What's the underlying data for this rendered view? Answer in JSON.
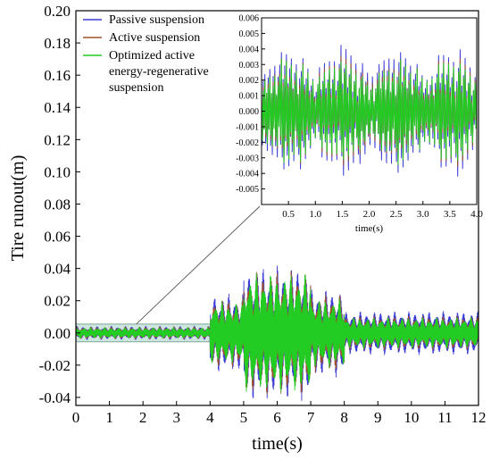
{
  "chart_data": [
    {
      "type": "line",
      "xlabel": "time(s)",
      "ylabel": "Tire runout(m)",
      "xlim": [
        0,
        12
      ],
      "ylim": [
        -0.045,
        0.2
      ],
      "xticks": [
        "0",
        "1",
        "2",
        "3",
        "4",
        "5",
        "6",
        "7",
        "8",
        "9",
        "10",
        "11",
        "12"
      ],
      "yticks": [
        "0.20",
        "0.18",
        "0.16",
        "0.14",
        "0.12",
        "0.10",
        "0.08",
        "0.06",
        "0.04",
        "0.02",
        "0.00",
        "-0.02",
        "-0.04"
      ],
      "grid": false,
      "legend": "top-left",
      "highlight_region": {
        "x": [
          0,
          4
        ],
        "y": [
          -0.0055,
          0.0055
        ]
      },
      "series": [
        {
          "name": "Passive suspension",
          "color": "#3b3bd6",
          "segments": [
            {
              "x_range": [
                0,
                4
              ],
              "amplitude": 0.0045
            },
            {
              "x_range": [
                4,
                5
              ],
              "amplitude": 0.025
            },
            {
              "x_range": [
                5,
                7
              ],
              "amplitude": 0.043
            },
            {
              "x_range": [
                7,
                8
              ],
              "amplitude": 0.028
            },
            {
              "x_range": [
                8,
                12
              ],
              "amplitude": 0.014
            }
          ]
        },
        {
          "name": "Active suspension",
          "color": "#a0522d",
          "segments": [
            {
              "x_range": [
                0,
                4
              ],
              "amplitude": 0.004
            },
            {
              "x_range": [
                4,
                5
              ],
              "amplitude": 0.022
            },
            {
              "x_range": [
                5,
                7
              ],
              "amplitude": 0.04
            },
            {
              "x_range": [
                7,
                8
              ],
              "amplitude": 0.025
            },
            {
              "x_range": [
                8,
                12
              ],
              "amplitude": 0.011
            }
          ]
        },
        {
          "name": "Optimized active energy-regenerative suspension",
          "color": "#22cc22",
          "segments": [
            {
              "x_range": [
                0,
                4
              ],
              "amplitude": 0.0035
            },
            {
              "x_range": [
                4,
                5
              ],
              "amplitude": 0.02
            },
            {
              "x_range": [
                5,
                7
              ],
              "amplitude": 0.038
            },
            {
              "x_range": [
                7,
                8
              ],
              "amplitude": 0.022
            },
            {
              "x_range": [
                8,
                12
              ],
              "amplitude": 0.01
            }
          ]
        }
      ]
    },
    {
      "type": "line",
      "role": "inset",
      "xlabel": "time(s)",
      "ylabel": "",
      "xlim": [
        0,
        4
      ],
      "ylim": [
        -0.006,
        0.006
      ],
      "xticks": [
        "0.5",
        "1.0",
        "1.5",
        "2.0",
        "2.5",
        "3.0",
        "3.5",
        "4.0"
      ],
      "yticks": [
        "0.006",
        "0.005",
        "0.004",
        "0.003",
        "0.002",
        "0.001",
        "0.000",
        "-0.001",
        "-0.002",
        "-0.003",
        "-0.004",
        "-0.005"
      ],
      "grid": false,
      "series": [
        {
          "name": "Passive suspension",
          "color": "#3b3bd6",
          "amplitude": 0.0042
        },
        {
          "name": "Active suspension",
          "color": "#a0522d",
          "amplitude": 0.0036
        },
        {
          "name": "Optimized active energy-regenerative suspension",
          "color": "#22cc22",
          "amplitude": 0.0034
        }
      ]
    }
  ],
  "legend": {
    "items": [
      {
        "lines": [
          "Passive suspension"
        ],
        "color": "#3b3bd6"
      },
      {
        "lines": [
          "Active suspension"
        ],
        "color": "#a0522d"
      },
      {
        "lines": [
          "Optimized active",
          "energy-regenerative",
          "suspension"
        ],
        "color": "#22cc22"
      }
    ]
  }
}
